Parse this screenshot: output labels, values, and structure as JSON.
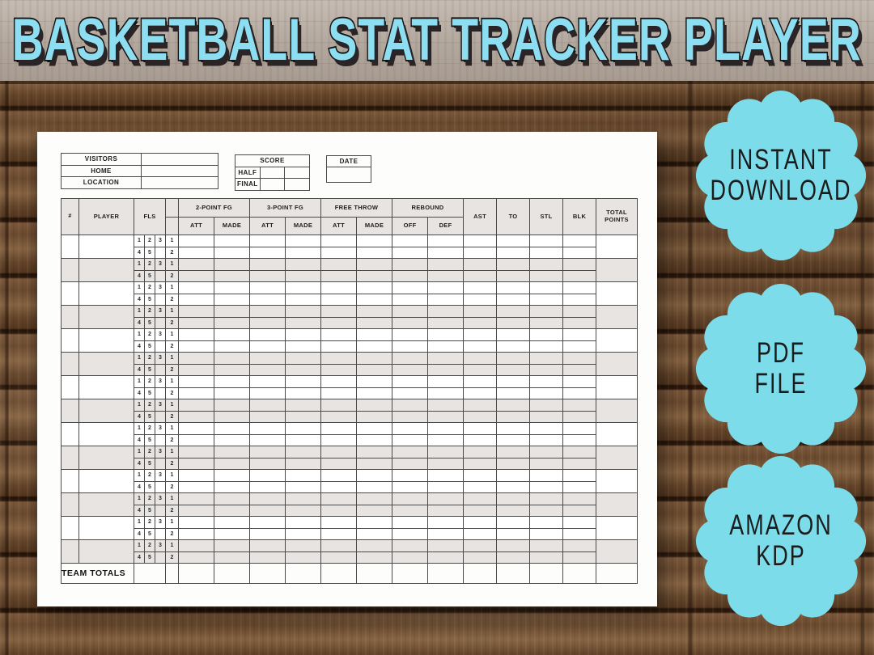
{
  "banner": {
    "title": "BASKETBALL STAT TRACKER PLAYER"
  },
  "colors": {
    "banner_text": "#8edef2",
    "badge_fill": "#7cdcea",
    "row_shade": "#e7e4e1"
  },
  "sheet": {
    "info": {
      "visitors_label": "VISITORS",
      "home_label": "HOME",
      "location_label": "LOCATION",
      "score_label": "SCORE",
      "half_label": "HALF",
      "final_label": "FINAL",
      "date_label": "DATE"
    },
    "table": {
      "headers": {
        "num": "#",
        "player": "PLAYER",
        "fls": "FLS",
        "groups": [
          {
            "label": "2-POINT FG",
            "cols": [
              "ATT",
              "MADE"
            ]
          },
          {
            "label": "3-POINT FG",
            "cols": [
              "ATT",
              "MADE"
            ]
          },
          {
            "label": "FREE THROW",
            "cols": [
              "ATT",
              "MADE"
            ]
          },
          {
            "label": "REBOUND",
            "cols": [
              "OFF",
              "DEF"
            ]
          }
        ],
        "singles": [
          "AST",
          "TO",
          "STL",
          "BLK"
        ],
        "total": "TOTAL POINTS"
      },
      "fls_row1": [
        "1",
        "2",
        "3"
      ],
      "fls_row2": [
        "4",
        "5",
        ""
      ],
      "period_row1": "1",
      "period_row2": "2",
      "player_rows": 14,
      "team_totals_label": "TEAM TOTALS"
    }
  },
  "badges": [
    {
      "lines": [
        "INSTANT",
        "DOWNLOAD"
      ]
    },
    {
      "lines": [
        "PDF",
        "FILE"
      ]
    },
    {
      "lines": [
        "AMAZON",
        "KDP"
      ]
    }
  ]
}
